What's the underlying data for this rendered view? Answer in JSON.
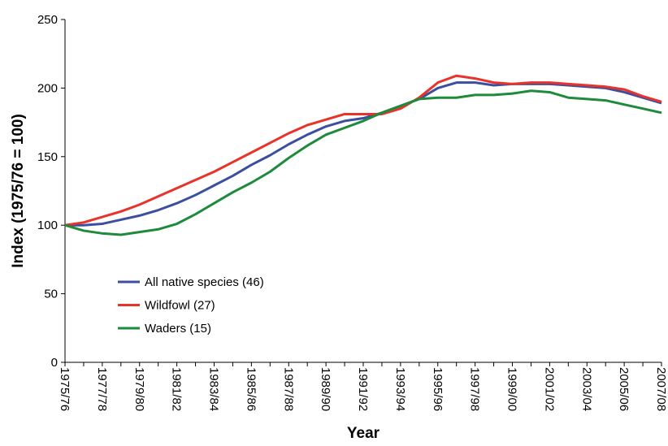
{
  "chart_data": {
    "type": "line",
    "x_label": "Year",
    "y_label": "Index (1975/76 = 100)",
    "categories": [
      "1975/76",
      null,
      "1977/78",
      null,
      "1979/80",
      null,
      "1981/82",
      null,
      "1983/84",
      null,
      "1985/86",
      null,
      "1987/88",
      null,
      "1989/90",
      null,
      "1991/92",
      null,
      "1993/94",
      null,
      "1995/96",
      null,
      "1997/98",
      null,
      "1999/00",
      null,
      "2001/02",
      null,
      "2003/04",
      null,
      "2005/06",
      null,
      "2007/08"
    ],
    "series": [
      {
        "name": "All native species (46)",
        "color": "#3c4f9f",
        "values": [
          100,
          100,
          101,
          104,
          107,
          111,
          116,
          122,
          129,
          136,
          144,
          151,
          159,
          166,
          172,
          176,
          178,
          182,
          187,
          192,
          200,
          204,
          204,
          202,
          203,
          203,
          203,
          202,
          201,
          200,
          197,
          193,
          189
        ]
      },
      {
        "name": "Wildfowl (27)",
        "color": "#e8322a",
        "values": [
          100,
          102,
          106,
          110,
          115,
          121,
          127,
          133,
          139,
          146,
          153,
          160,
          167,
          173,
          177,
          181,
          181,
          181,
          185,
          193,
          204,
          209,
          207,
          204,
          203,
          204,
          204,
          203,
          202,
          201,
          199,
          194,
          190
        ]
      },
      {
        "name": "Waders (15)",
        "color": "#1e8a3b",
        "values": [
          100,
          96,
          94,
          93,
          95,
          97,
          101,
          108,
          116,
          124,
          131,
          139,
          149,
          158,
          166,
          171,
          176,
          182,
          187,
          192,
          193,
          193,
          195,
          195,
          196,
          198,
          197,
          193,
          192,
          191,
          188,
          185,
          182
        ]
      }
    ],
    "ylim": [
      0,
      250
    ],
    "yticks": [
      0,
      50,
      100,
      150,
      200,
      250
    ],
    "grid": false
  }
}
